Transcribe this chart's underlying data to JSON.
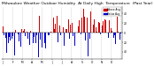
{
  "title": "Milwaukee Weather Outdoor Humidity  At Daily High  Temperature  (Past Year)",
  "title_fontsize": 3.2,
  "num_points": 365,
  "ylim": [
    -55,
    55
  ],
  "yticks": [
    -40,
    -20,
    0,
    20,
    40
  ],
  "background_color": "#ffffff",
  "bar_color_pos": "#cc0000",
  "bar_color_neg": "#0000cc",
  "legend_label_pos": "Above Avg",
  "legend_label_neg": "Below Avg",
  "legend_color_pos": "#cc0000",
  "legend_color_neg": "#0000cc",
  "grid_color": "#bbbbbb",
  "seed": 42
}
